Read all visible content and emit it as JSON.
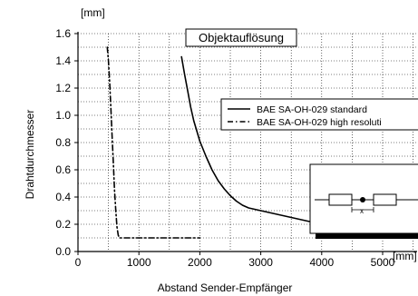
{
  "chart_data": {
    "type": "line",
    "title": "Objektauflösung",
    "xlabel": "Abstand Sender-Empfänger",
    "ylabel": "Drahtdurchmesser",
    "y_unit": "[mm]",
    "x_unit": "[mm]",
    "xlim": [
      0,
      5000
    ],
    "ylim": [
      0,
      1.6
    ],
    "x_ticks": [
      "0",
      "1000",
      "2000",
      "3000",
      "4000",
      "5000"
    ],
    "y_ticks": [
      "0.0",
      "0.2",
      "0.4",
      "0.6",
      "0.8",
      "1.0",
      "1.2",
      "1.4",
      "1.6"
    ],
    "grid": true,
    "legend_position": "right",
    "series": [
      {
        "name": "BAE SA-OH-029 standard",
        "style": "solid",
        "x": [
          1700,
          1750,
          1800,
          1850,
          1900,
          2000,
          2100,
          2200,
          2300,
          2400,
          2500,
          2600,
          2700,
          2800,
          3000,
          3200,
          3500,
          3800,
          4000
        ],
        "y": [
          1.43,
          1.3,
          1.18,
          1.06,
          0.96,
          0.81,
          0.7,
          0.6,
          0.52,
          0.46,
          0.41,
          0.37,
          0.34,
          0.32,
          0.3,
          0.28,
          0.25,
          0.22,
          0.2
        ]
      },
      {
        "name": "BAE SA-OH-029 high resoluti",
        "style": "dashdot",
        "x": [
          480,
          500,
          520,
          540,
          560,
          580,
          600,
          620,
          640,
          660,
          680,
          700,
          800,
          1000,
          1500,
          2000
        ],
        "y": [
          1.5,
          1.4,
          1.25,
          1.05,
          0.85,
          0.65,
          0.45,
          0.3,
          0.18,
          0.12,
          0.1,
          0.1,
          0.1,
          0.1,
          0.1,
          0.1
        ]
      }
    ]
  }
}
